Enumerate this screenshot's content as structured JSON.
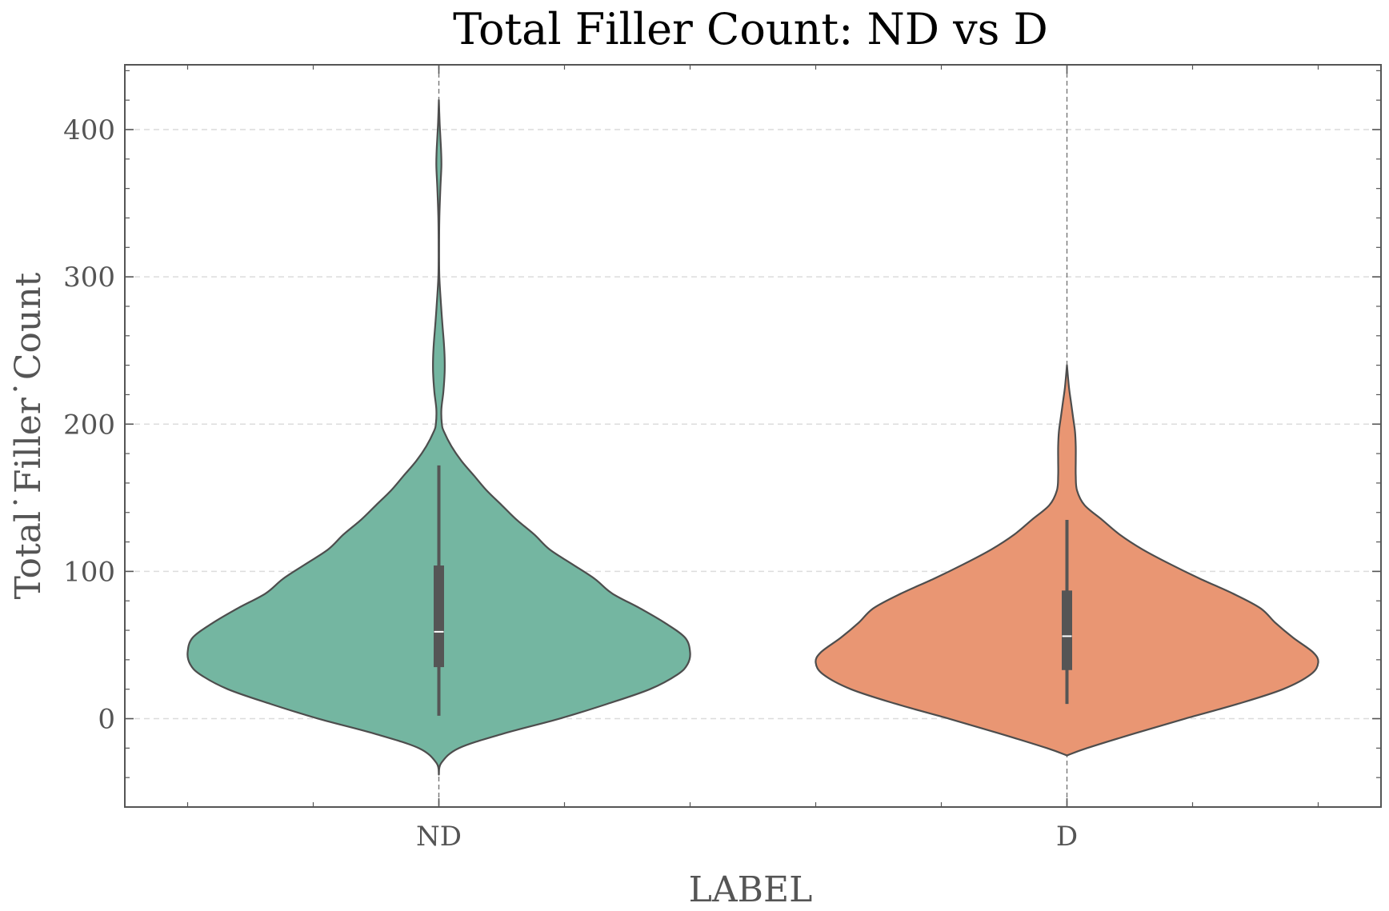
{
  "chart_data": {
    "type": "violin",
    "title": "Total Filler Count: ND vs D",
    "xlabel": "LABEL",
    "ylabel": "Total˙Filler˙Count",
    "categories": [
      "ND",
      "D"
    ],
    "ylim": [
      -60,
      444
    ],
    "yticks": [
      0,
      100,
      200,
      300,
      400
    ],
    "grid": true,
    "colors": {
      "ND": "#74b6a1",
      "D": "#e99673",
      "outline": "#4d4d4d",
      "box": "#555555"
    },
    "series": [
      {
        "name": "ND",
        "box": {
          "min": 2,
          "q1": 35,
          "median": 59,
          "q3": 104,
          "max": 172
        },
        "density": [
          [
            -38,
            0.0
          ],
          [
            -30,
            0.01
          ],
          [
            -20,
            0.08
          ],
          [
            -10,
            0.26
          ],
          [
            0,
            0.48
          ],
          [
            10,
            0.67
          ],
          [
            20,
            0.84
          ],
          [
            30,
            0.95
          ],
          [
            37,
            0.99
          ],
          [
            45,
            1.0
          ],
          [
            55,
            0.98
          ],
          [
            65,
            0.9
          ],
          [
            75,
            0.8
          ],
          [
            85,
            0.69
          ],
          [
            95,
            0.62
          ],
          [
            105,
            0.53
          ],
          [
            115,
            0.44
          ],
          [
            125,
            0.38
          ],
          [
            135,
            0.31
          ],
          [
            145,
            0.25
          ],
          [
            155,
            0.19
          ],
          [
            165,
            0.14
          ],
          [
            175,
            0.09
          ],
          [
            185,
            0.05
          ],
          [
            195,
            0.02
          ],
          [
            200,
            0.012
          ],
          [
            210,
            0.01
          ],
          [
            222,
            0.018
          ],
          [
            235,
            0.023
          ],
          [
            245,
            0.023
          ],
          [
            255,
            0.02
          ],
          [
            268,
            0.014
          ],
          [
            280,
            0.009
          ],
          [
            300,
            0.002
          ],
          [
            320,
            0.001
          ],
          [
            340,
            0.002
          ],
          [
            360,
            0.006
          ],
          [
            375,
            0.01
          ],
          [
            385,
            0.009
          ],
          [
            395,
            0.006
          ],
          [
            405,
            0.003
          ],
          [
            420,
            0.0
          ]
        ]
      },
      {
        "name": "D",
        "box": {
          "min": 10,
          "q1": 33,
          "median": 56,
          "q3": 87,
          "max": 135
        },
        "density": [
          [
            -25,
            0.0
          ],
          [
            -20,
            0.08
          ],
          [
            -10,
            0.27
          ],
          [
            0,
            0.47
          ],
          [
            10,
            0.68
          ],
          [
            20,
            0.86
          ],
          [
            30,
            0.97
          ],
          [
            38,
            1.0
          ],
          [
            45,
            0.98
          ],
          [
            55,
            0.9
          ],
          [
            65,
            0.83
          ],
          [
            75,
            0.77
          ],
          [
            85,
            0.66
          ],
          [
            95,
            0.53
          ],
          [
            105,
            0.41
          ],
          [
            115,
            0.3
          ],
          [
            125,
            0.21
          ],
          [
            135,
            0.14
          ],
          [
            145,
            0.07
          ],
          [
            155,
            0.04
          ],
          [
            165,
            0.035
          ],
          [
            175,
            0.035
          ],
          [
            185,
            0.035
          ],
          [
            195,
            0.032
          ],
          [
            205,
            0.024
          ],
          [
            215,
            0.016
          ],
          [
            225,
            0.008
          ],
          [
            240,
            0.0
          ]
        ]
      }
    ]
  }
}
